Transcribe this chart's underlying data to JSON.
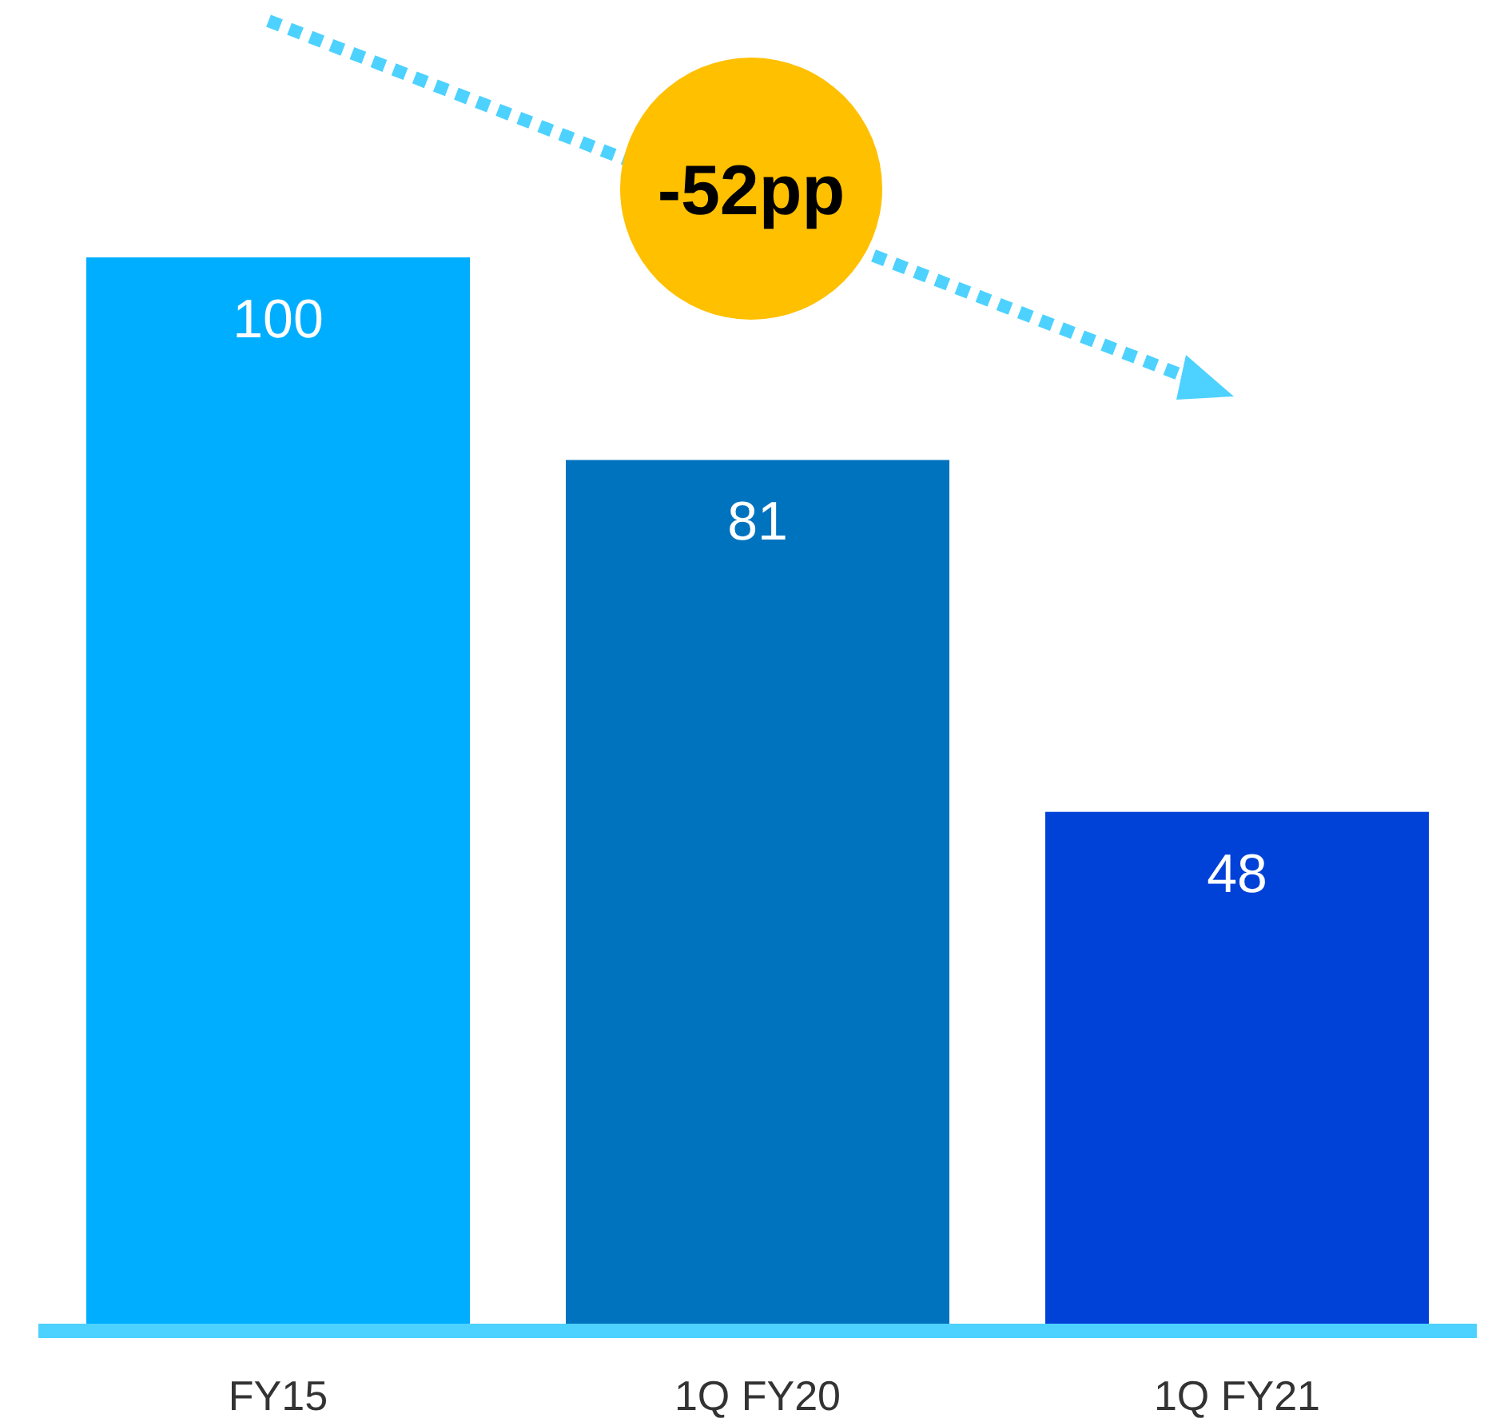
{
  "chart_data": {
    "type": "bar",
    "categories": [
      "FY15",
      "1Q FY20",
      "1Q FY21"
    ],
    "values": [
      100,
      81,
      48
    ],
    "colors": [
      "#00aeff",
      "#0073bf",
      "#0041d8"
    ],
    "relative": false,
    "data_labels": true,
    "annotations": [
      "-52pp"
    ]
  }
}
